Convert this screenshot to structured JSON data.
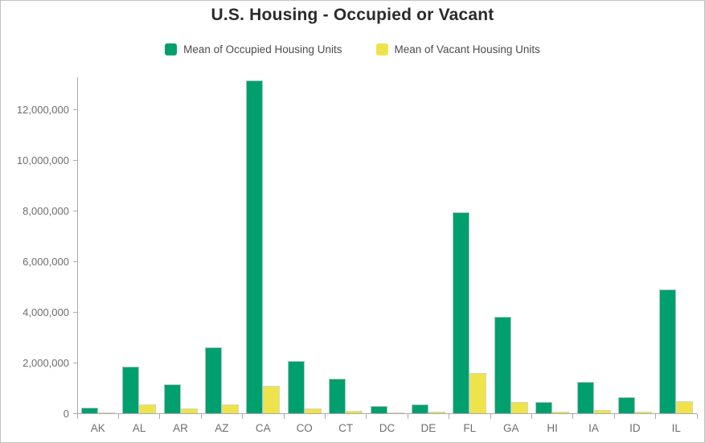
{
  "chart_data": {
    "type": "bar",
    "title": "U.S. Housing - Occupied or Vacant",
    "categories": [
      "AK",
      "AL",
      "AR",
      "AZ",
      "CA",
      "CO",
      "CT",
      "DC",
      "DE",
      "FL",
      "GA",
      "HI",
      "IA",
      "ID",
      "IL"
    ],
    "series": [
      {
        "name": "Mean of Occupied Housing Units",
        "color": "#00A06E",
        "values": [
          230000,
          1850000,
          1150000,
          2600000,
          13150000,
          2070000,
          1350000,
          270000,
          350000,
          7950000,
          3810000,
          440000,
          1240000,
          630000,
          4890000
        ]
      },
      {
        "name": "Mean of Vacant Housing Units",
        "color": "#EFE34C",
        "values": [
          40000,
          350000,
          190000,
          350000,
          1080000,
          200000,
          100000,
          40000,
          70000,
          1600000,
          450000,
          60000,
          120000,
          75000,
          480000
        ]
      }
    ],
    "xlabel": "",
    "ylabel": "",
    "ylim": [
      0,
      13270000
    ],
    "ytick_interval": 2000000,
    "yticks": [
      "0",
      "2,000,000",
      "4,000,000",
      "6,000,000",
      "8,000,000",
      "10,000,000",
      "12,000,000"
    ],
    "grid": false,
    "legend_position": "top",
    "axis_color": "#ababab",
    "tick_label_color": "#6e6e6e",
    "title_color": "#2b2b2b"
  }
}
